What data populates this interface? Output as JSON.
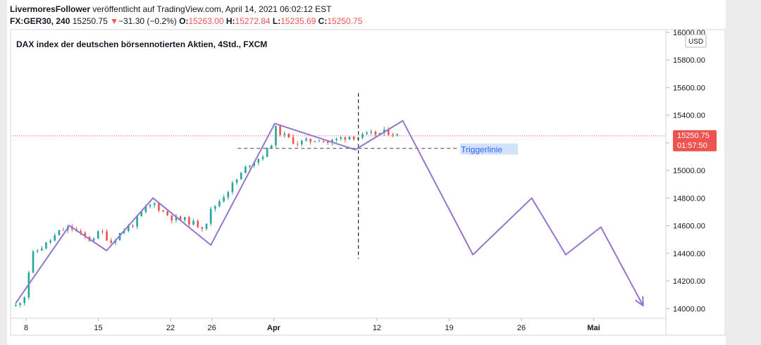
{
  "header": {
    "author": "LivermoresFollower",
    "published_text": " veröffentlicht auf TradingView.com, April 14, 2021 06:02:12 EST",
    "symbol": "FX:GER30, 240",
    "last": "15250.75",
    "change_arrow": "▼",
    "change": "−31.30 (−0.2%)",
    "o_label": "O:",
    "o_value": "15263.00",
    "h_label": "H:",
    "h_value": "15272.84",
    "l_label": "L:",
    "l_value": "15235.69",
    "c_label": "C:",
    "c_value": "15250.75"
  },
  "chart_data": {
    "type": "candlestick",
    "title": "DAX index der deutschen börsennotierten Aktien, 4Std., FXCM",
    "currency": "USD",
    "y_ticks": [
      "16000.00",
      "15800.00",
      "15600.00",
      "15400.00",
      "15200.00",
      "15000.00",
      "14800.00",
      "14600.00",
      "14400.00",
      "14200.00",
      "14000.00"
    ],
    "y_tick_values": [
      16000,
      15800,
      15600,
      15400,
      15200,
      15000,
      14800,
      14600,
      14400,
      14200,
      14000
    ],
    "ylim": [
      13930,
      16020
    ],
    "x_ticks": [
      "8",
      "15",
      "22",
      "26",
      "Apr",
      "12",
      "19",
      "26",
      "Mai"
    ],
    "x_tick_days": [
      8,
      15,
      22,
      26,
      32,
      42,
      49,
      56,
      63
    ],
    "x_tick_bold": [
      false,
      false,
      false,
      false,
      true,
      false,
      false,
      false,
      true
    ],
    "x_note": "x values are days counted from 1 March 2021",
    "xlim": [
      6.7,
      70.0
    ],
    "current_price": "15250.75",
    "current_price_value": 15250.75,
    "countdown": "01:57:50",
    "colors": {
      "up": "#26a69a",
      "down": "#ef5350",
      "pattern": "#9575cd",
      "price_badge": "#ef5350"
    },
    "candle_anchors": [
      {
        "x": 7.0,
        "y": 14020
      },
      {
        "x": 7.9,
        "y": 14100
      },
      {
        "x": 8.5,
        "y": 14380
      },
      {
        "x": 9.2,
        "y": 14430
      },
      {
        "x": 10.0,
        "y": 14470
      },
      {
        "x": 11.3,
        "y": 14560
      },
      {
        "x": 12.3,
        "y": 14590
      },
      {
        "x": 13.5,
        "y": 14520
      },
      {
        "x": 14.2,
        "y": 14500
      },
      {
        "x": 15.3,
        "y": 14560
      },
      {
        "x": 16.2,
        "y": 14480
      },
      {
        "x": 17.3,
        "y": 14560
      },
      {
        "x": 18.5,
        "y": 14620
      },
      {
        "x": 19.5,
        "y": 14720
      },
      {
        "x": 20.4,
        "y": 14760
      },
      {
        "x": 21.3,
        "y": 14700
      },
      {
        "x": 22.3,
        "y": 14650
      },
      {
        "x": 23.5,
        "y": 14640
      },
      {
        "x": 24.4,
        "y": 14610
      },
      {
        "x": 25.3,
        "y": 14590
      },
      {
        "x": 25.8,
        "y": 14700
      },
      {
        "x": 26.6,
        "y": 14770
      },
      {
        "x": 27.6,
        "y": 14860
      },
      {
        "x": 28.6,
        "y": 14950
      },
      {
        "x": 29.6,
        "y": 15050
      },
      {
        "x": 30.6,
        "y": 15090
      },
      {
        "x": 31.6,
        "y": 15160
      },
      {
        "x": 32.2,
        "y": 15300
      },
      {
        "x": 33.2,
        "y": 15240
      },
      {
        "x": 34.2,
        "y": 15200
      },
      {
        "x": 35.3,
        "y": 15210
      },
      {
        "x": 36.4,
        "y": 15230
      },
      {
        "x": 37.3,
        "y": 15200
      },
      {
        "x": 38.3,
        "y": 15230
      },
      {
        "x": 39.3,
        "y": 15250
      },
      {
        "x": 40.3,
        "y": 15240
      },
      {
        "x": 41.4,
        "y": 15260
      },
      {
        "x": 42.4,
        "y": 15270
      },
      {
        "x": 43.3,
        "y": 15280
      },
      {
        "x": 44.0,
        "y": 15250
      }
    ],
    "pattern_line": [
      {
        "x": 7.0,
        "y": 14040
      },
      {
        "x": 12.2,
        "y": 14600
      },
      {
        "x": 15.8,
        "y": 14420
      },
      {
        "x": 20.3,
        "y": 14800
      },
      {
        "x": 25.9,
        "y": 14460
      },
      {
        "x": 32.1,
        "y": 15340
      },
      {
        "x": 39.9,
        "y": 15150
      },
      {
        "x": 44.5,
        "y": 15360
      },
      {
        "x": 51.3,
        "y": 14390
      },
      {
        "x": 57.0,
        "y": 14800
      },
      {
        "x": 60.3,
        "y": 14390
      },
      {
        "x": 63.7,
        "y": 14590
      },
      {
        "x": 67.8,
        "y": 14020
      }
    ],
    "arrow_tip": {
      "x": 67.8,
      "y": 14020
    },
    "trigger_line": {
      "y": 15160,
      "x_start": 28.5,
      "x_end": 50.0,
      "label": "Triggerlinie"
    },
    "vertical_marker": {
      "x": 40.2,
      "y_top": 15560,
      "y_bottom": 14360
    }
  }
}
